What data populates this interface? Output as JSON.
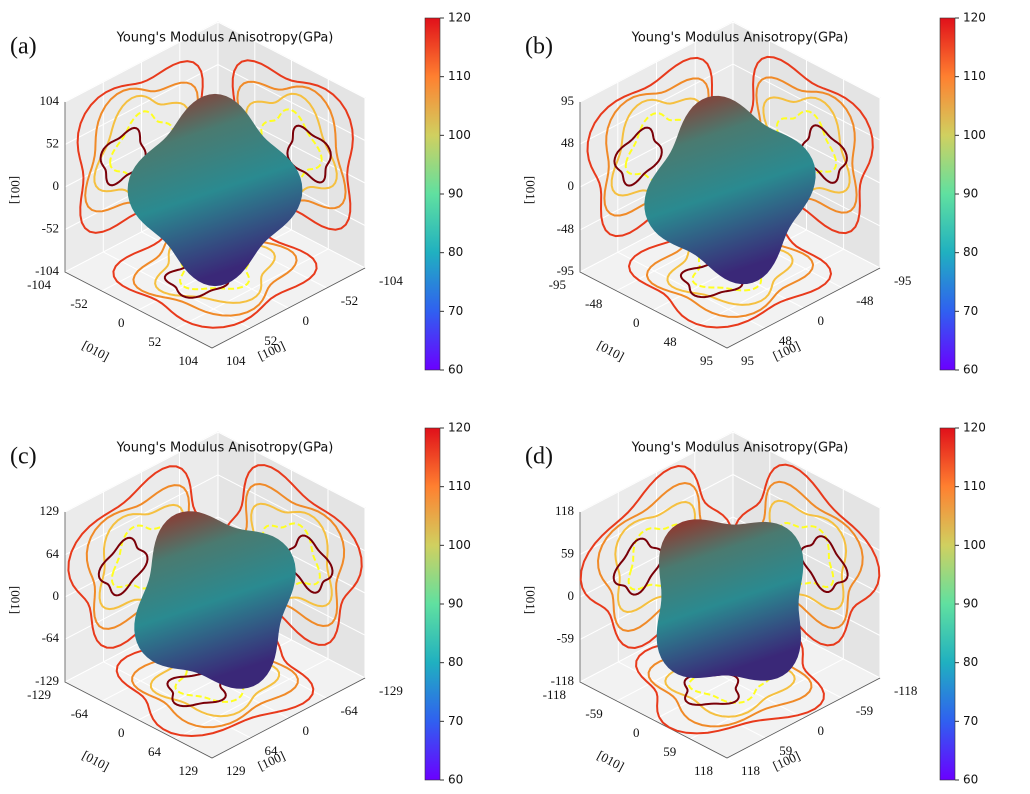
{
  "chart_data": [
    {
      "type": "surface3d",
      "panel_label": "(a)",
      "title": "Young's Modulus Anisotropy(GPa)",
      "xlabel": "[100]",
      "ylabel": "[010]",
      "zlabel": "[001]",
      "xlim": [
        -104,
        104
      ],
      "xticks": [
        -104,
        -52,
        0,
        52,
        104
      ],
      "ylim": [
        -104,
        104
      ],
      "yticks": [
        -104,
        -52,
        0,
        52,
        104
      ],
      "zlim": [
        -104,
        104
      ],
      "zticks": [
        -104,
        -52,
        0,
        52,
        104
      ],
      "clim": [
        60,
        120
      ],
      "cticks": [
        60,
        70,
        80,
        90,
        100,
        110,
        120
      ],
      "colormap": [
        "#6a00ff",
        "#3060f0",
        "#20b0c0",
        "#60e0a0",
        "#d0d060",
        "#ff8030",
        "#e0101a"
      ]
    },
    {
      "type": "surface3d",
      "panel_label": "(b)",
      "title": "Young's Modulus Anisotropy(GPa)",
      "xlabel": "[100]",
      "ylabel": "[010]",
      "zlabel": "[001]",
      "xlim": [
        -95,
        95
      ],
      "xticks": [
        -95,
        -48,
        0,
        48,
        95
      ],
      "ylim": [
        -95,
        95
      ],
      "yticks": [
        -95,
        -48,
        0,
        48,
        95
      ],
      "zlim": [
        -95,
        95
      ],
      "zticks": [
        -95,
        -48,
        0,
        48,
        95
      ],
      "clim": [
        60,
        120
      ],
      "cticks": [
        60,
        70,
        80,
        90,
        100,
        110,
        120
      ],
      "colormap": [
        "#6a00ff",
        "#3060f0",
        "#20b0c0",
        "#60e0a0",
        "#d0d060",
        "#ff8030",
        "#e0101a"
      ]
    },
    {
      "type": "surface3d",
      "panel_label": "(c)",
      "title": "Young's Modulus Anisotropy(GPa)",
      "xlabel": "[100]",
      "ylabel": "[010]",
      "zlabel": "[001]",
      "xlim": [
        -129,
        129
      ],
      "xticks": [
        -129,
        -64,
        0,
        64,
        129
      ],
      "ylim": [
        -129,
        129
      ],
      "yticks": [
        -129,
        -64,
        0,
        64,
        129
      ],
      "zlim": [
        -129,
        129
      ],
      "zticks": [
        -129,
        -64,
        0,
        64,
        129
      ],
      "clim": [
        60,
        120
      ],
      "cticks": [
        60,
        70,
        80,
        90,
        100,
        110,
        120
      ],
      "colormap": [
        "#6a00ff",
        "#3060f0",
        "#20b0c0",
        "#60e0a0",
        "#d0d060",
        "#ff8030",
        "#e0101a"
      ]
    },
    {
      "type": "surface3d",
      "panel_label": "(d)",
      "title": "Young's Modulus Anisotropy(GPa)",
      "xlabel": "[100]",
      "ylabel": "[010]",
      "zlabel": "[001]",
      "xlim": [
        -118,
        118
      ],
      "xticks": [
        -118,
        -59,
        0,
        59,
        118
      ],
      "ylim": [
        -118,
        118
      ],
      "yticks": [
        -118,
        -59,
        0,
        59,
        118
      ],
      "zlim": [
        -118,
        118
      ],
      "zticks": [
        -118,
        -59,
        0,
        59,
        118
      ],
      "clim": [
        60,
        120
      ],
      "cticks": [
        60,
        70,
        80,
        90,
        100,
        110,
        120
      ],
      "colormap": [
        "#6a00ff",
        "#3060f0",
        "#20b0c0",
        "#60e0a0",
        "#d0d060",
        "#ff8030",
        "#e0101a"
      ]
    }
  ]
}
